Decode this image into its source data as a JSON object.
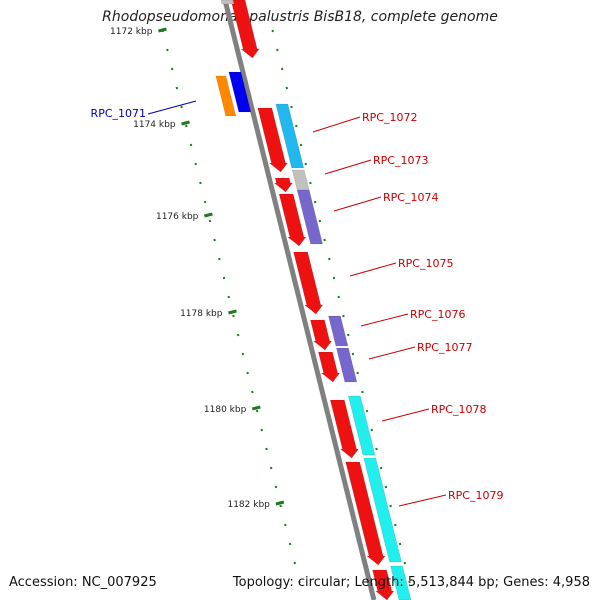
{
  "title": "Rhodopseudomonas palustris BisB18, complete genome",
  "accession": "Accession: NC_007925",
  "topology": "Topology: circular; Length: 5,513,844 bp; Genes: 4,958",
  "colors": {
    "backbone": "#808080",
    "tick": "#1f7a1f",
    "gene_red": "#ee1111",
    "label_red": "#cc0000",
    "label_blue": "#0000bb",
    "orange": "#ff8800",
    "blue": "#0000ee",
    "sky": "#22b8ee",
    "grey": "#c0c0c0",
    "purple": "#7766cc",
    "cyan": "#22eeee"
  },
  "ticks": [
    "1172 kbp",
    "1174 kbp",
    "1176 kbp",
    "1178 kbp",
    "1180 kbp",
    "1182 kbp"
  ],
  "gene_labels": [
    "RPC_1071",
    "RPC_1072",
    "RPC_1073",
    "RPC_1074",
    "RPC_1075",
    "RPC_1076",
    "RPC_1077",
    "RPC_1078",
    "RPC_1079"
  ]
}
